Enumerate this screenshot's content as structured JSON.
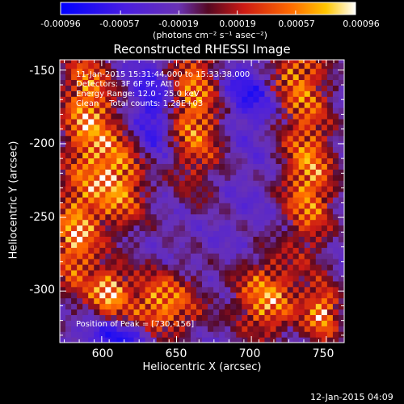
{
  "colorbar": {
    "ticks": [
      "-0.00096",
      "-0.00057",
      "-0.00019",
      "0.00019",
      "0.00057",
      "0.00096"
    ],
    "unit": "(photons cm⁻² s⁻¹ asec⁻²)",
    "range": [
      -0.00096,
      0.00096
    ]
  },
  "chart_data": {
    "type": "heatmap",
    "title": "Reconstructed RHESSI Image",
    "xlabel": "Heliocentric X (arcsec)",
    "ylabel": "Heliocentric Y (arcsec)",
    "xlim": [
      572,
      762
    ],
    "ylim": [
      -335,
      -143
    ],
    "xticks": [
      600,
      650,
      700,
      750
    ],
    "yticks": [
      -150,
      -200,
      -250,
      -300
    ],
    "annotations": [
      "11-Jan-2015 15:31:44.000 to 15:33:38.000",
      "Detectors: 3F 6F 9F, Att 0",
      "Energy Range: 12.0 - 25.0 keV",
      "Clean    Total counts: 1.28E+03"
    ],
    "peak_label": "Position of Peak = [730,-156]",
    "peak_position": [
      730,
      -156
    ],
    "colormap": "blue-purple-red-yellow-white",
    "colors": {
      "low": "#0000ff",
      "mid_low": "#6a32b4",
      "mid": "#cc1a14",
      "mid_high": "#ff9a00",
      "high": "#ffffff"
    },
    "bright_regions": [
      {
        "x": 590,
        "y": -175,
        "w": 18,
        "h": 45
      },
      {
        "x": 612,
        "y": -225,
        "w": 20,
        "h": 35
      },
      {
        "x": 582,
        "y": -265,
        "w": 16,
        "h": 40
      },
      {
        "x": 662,
        "y": -175,
        "w": 20,
        "h": 55
      },
      {
        "x": 728,
        "y": -156,
        "w": 22,
        "h": 30
      },
      {
        "x": 738,
        "y": -225,
        "w": 18,
        "h": 50
      },
      {
        "x": 640,
        "y": -310,
        "w": 26,
        "h": 25
      },
      {
        "x": 710,
        "y": -305,
        "w": 22,
        "h": 28
      },
      {
        "x": 748,
        "y": -315,
        "w": 12,
        "h": 20
      },
      {
        "x": 605,
        "y": -300,
        "w": 12,
        "h": 16
      }
    ],
    "dark_regions": [
      {
        "x": 635,
        "y": -180,
        "w": 14,
        "h": 35
      },
      {
        "x": 705,
        "y": -165,
        "w": 28,
        "h": 22
      },
      {
        "x": 615,
        "y": -330,
        "w": 24,
        "h": 10
      }
    ]
  },
  "footer": {
    "timestamp": "12-Jan-2015 04:09"
  }
}
